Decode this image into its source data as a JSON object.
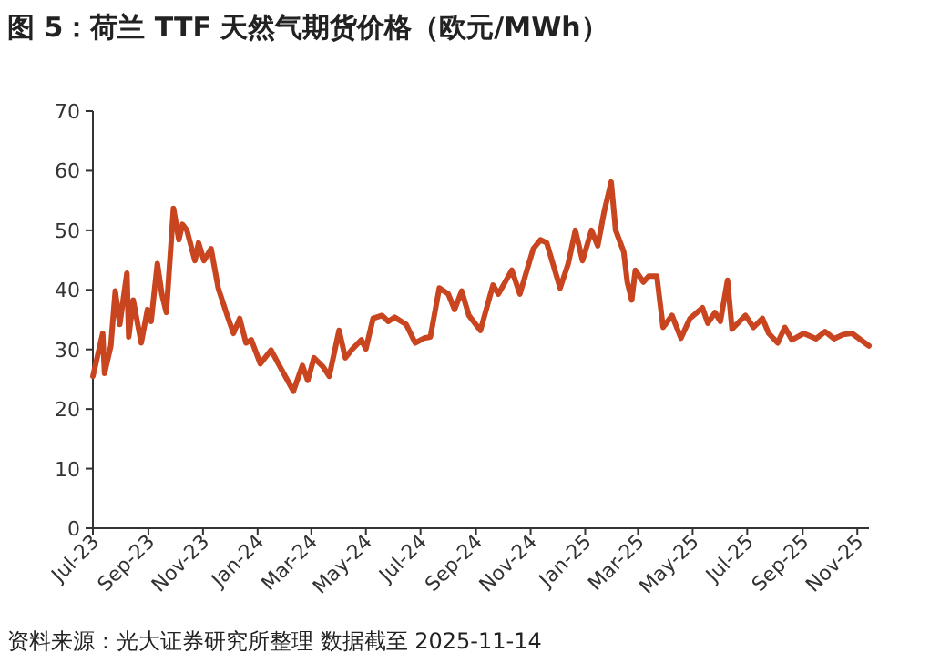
{
  "chart_data": {
    "type": "line",
    "title": "图 5：荷兰 TTF 天然气期货价格（欧元/MWh）",
    "annotations": [
      "资料来源：光大证券研究所整理 数据截至 2025-11-14"
    ],
    "x": [
      "2023-07-01",
      "2023-07-12",
      "2023-07-14",
      "2023-07-21",
      "2023-07-26",
      "2023-07-31",
      "2023-08-08",
      "2023-08-10",
      "2023-08-15",
      "2023-08-24",
      "2023-08-31",
      "2023-09-04",
      "2023-09-11",
      "2023-09-16",
      "2023-09-21",
      "2023-09-29",
      "2023-10-05",
      "2023-10-09",
      "2023-10-14",
      "2023-10-23",
      "2023-10-27",
      "2023-11-02",
      "2023-11-10",
      "2023-11-18",
      "2023-11-28",
      "2023-12-05",
      "2023-12-12",
      "2023-12-19",
      "2023-12-25",
      "2024-01-04",
      "2024-01-16",
      "2024-01-26",
      "2024-02-10",
      "2024-02-20",
      "2024-02-26",
      "2024-03-04",
      "2024-03-14",
      "2024-03-21",
      "2024-04-01",
      "2024-04-08",
      "2024-04-16",
      "2024-04-26",
      "2024-05-01",
      "2024-05-09",
      "2024-05-19",
      "2024-05-26",
      "2024-06-02",
      "2024-06-15",
      "2024-06-25",
      "2024-07-05",
      "2024-07-12",
      "2024-07-22",
      "2024-08-01",
      "2024-08-08",
      "2024-08-16",
      "2024-08-24",
      "2024-09-06",
      "2024-09-20",
      "2024-09-26",
      "2024-10-11",
      "2024-10-20",
      "2024-11-04",
      "2024-11-12",
      "2024-11-19",
      "2024-12-04",
      "2024-12-13",
      "2024-12-21",
      "2024-12-29",
      "2025-01-08",
      "2025-01-15",
      "2025-01-22",
      "2025-01-30",
      "2025-02-04",
      "2025-02-13",
      "2025-02-17",
      "2025-02-22",
      "2025-02-26",
      "2025-03-07",
      "2025-03-13",
      "2025-03-22",
      "2025-03-29",
      "2025-04-08",
      "2025-04-18",
      "2025-04-28",
      "2025-05-12",
      "2025-05-18",
      "2025-05-26",
      "2025-06-01",
      "2025-06-09",
      "2025-06-14",
      "2025-06-29",
      "2025-07-08",
      "2025-07-18",
      "2025-07-25",
      "2025-08-04",
      "2025-08-12",
      "2025-08-20",
      "2025-09-02",
      "2025-09-16",
      "2025-09-26",
      "2025-10-06",
      "2025-10-16",
      "2025-10-26",
      "2025-11-14"
    ],
    "series": [
      {
        "color": "#c8451f",
        "values": [
          25.5,
          32.7,
          26.0,
          30.6,
          39.8,
          34.2,
          42.8,
          32.1,
          38.3,
          31.1,
          36.7,
          34.7,
          44.4,
          39.3,
          36.2,
          53.7,
          48.4,
          51.0,
          50.0,
          44.9,
          47.9,
          44.9,
          46.9,
          40.3,
          35.7,
          32.7,
          35.2,
          31.1,
          31.6,
          27.6,
          29.9,
          27.1,
          23.0,
          27.3,
          24.8,
          28.6,
          27.1,
          25.5,
          33.2,
          28.6,
          30.1,
          31.6,
          30.1,
          35.2,
          35.7,
          34.7,
          35.4,
          34.2,
          31.1,
          31.9,
          32.1,
          40.3,
          39.3,
          36.7,
          39.8,
          35.7,
          33.2,
          40.8,
          39.3,
          43.3,
          39.3,
          46.9,
          48.4,
          47.9,
          40.3,
          44.4,
          50.0,
          44.9,
          50.0,
          47.4,
          53.0,
          58.1,
          50.0,
          46.4,
          41.3,
          38.3,
          43.3,
          41.3,
          42.3,
          42.3,
          33.7,
          35.7,
          31.9,
          35.2,
          37.0,
          34.4,
          36.2,
          34.7,
          41.6,
          33.4,
          35.7,
          33.7,
          35.2,
          32.7,
          31.1,
          33.7,
          31.6,
          32.7,
          31.8,
          33.0,
          31.8,
          32.5,
          32.7,
          30.6
        ]
      }
    ],
    "xlim": [
      "2023-07-01",
      "2025-11-14"
    ],
    "xticks": [
      {
        "value": "2023-07-01",
        "label": "Jul-23"
      },
      {
        "value": "2023-09-01",
        "label": "Sep-23"
      },
      {
        "value": "2023-11-01",
        "label": "Nov-23"
      },
      {
        "value": "2024-01-01",
        "label": "Jan-24"
      },
      {
        "value": "2024-03-01",
        "label": "Mar-24"
      },
      {
        "value": "2024-05-01",
        "label": "May-24"
      },
      {
        "value": "2024-07-01",
        "label": "Jul-24"
      },
      {
        "value": "2024-09-01",
        "label": "Sep-24"
      },
      {
        "value": "2024-11-01",
        "label": "Nov-24"
      },
      {
        "value": "2025-01-01",
        "label": "Jan-25"
      },
      {
        "value": "2025-03-01",
        "label": "Mar-25"
      },
      {
        "value": "2025-05-01",
        "label": "May-25"
      },
      {
        "value": "2025-07-01",
        "label": "Jul-25"
      },
      {
        "value": "2025-09-01",
        "label": "Sep-25"
      },
      {
        "value": "2025-11-01",
        "label": "Nov-25"
      }
    ],
    "ylim": [
      0,
      70
    ],
    "yticks": [
      0,
      10,
      20,
      30,
      40,
      50,
      60,
      70
    ],
    "grid": false,
    "marker": "none"
  }
}
